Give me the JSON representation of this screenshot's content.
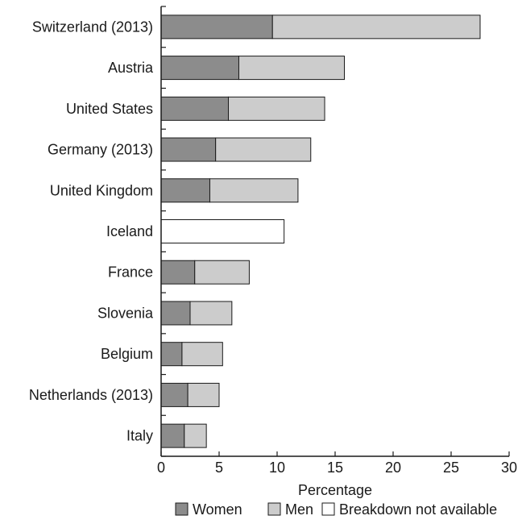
{
  "chart_data": {
    "type": "bar",
    "orientation": "horizontal",
    "stacked": true,
    "categories": [
      "Switzerland (2013)",
      "Austria",
      "United States",
      "Germany (2013)",
      "United Kingdom",
      "Iceland",
      "France",
      "Slovenia",
      "Belgium",
      "Netherlands (2013)",
      "Italy"
    ],
    "series": [
      {
        "name": "Women",
        "color": "#8c8c8c",
        "values": [
          9.6,
          6.7,
          5.8,
          4.7,
          4.2,
          null,
          2.9,
          2.5,
          1.8,
          2.3,
          2.0
        ]
      },
      {
        "name": "Men",
        "color": "#cccccc",
        "values": [
          17.9,
          9.1,
          8.3,
          8.2,
          7.6,
          null,
          4.7,
          3.6,
          3.5,
          2.7,
          1.9
        ]
      },
      {
        "name": "Breakdown not available",
        "color": "#ffffff",
        "values": [
          null,
          null,
          null,
          null,
          null,
          10.6,
          null,
          null,
          null,
          null,
          null
        ]
      }
    ],
    "xlabel": "Percentage",
    "ylabel": "",
    "title": "",
    "xlim": [
      0,
      30
    ],
    "xticks": [
      0,
      5,
      10,
      15,
      20,
      25,
      30
    ],
    "grid": false,
    "legend": "bottom"
  }
}
